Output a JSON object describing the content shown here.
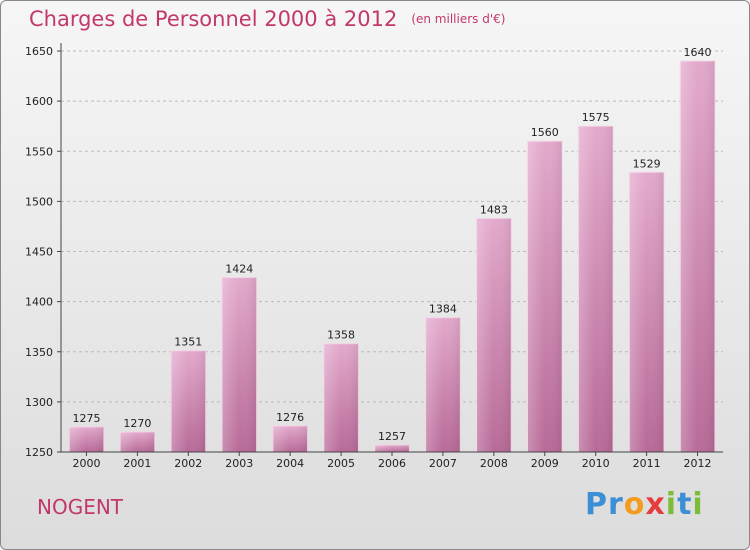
{
  "chart_data": {
    "type": "bar",
    "title": "Charges de Personnel 2000 à 2012",
    "subtitle": "(en milliers d'€)",
    "categories": [
      "2000",
      "2001",
      "2002",
      "2003",
      "2004",
      "2005",
      "2006",
      "2007",
      "2008",
      "2009",
      "2010",
      "2011",
      "2012"
    ],
    "values": [
      1275,
      1270,
      1351,
      1424,
      1276,
      1358,
      1257,
      1384,
      1483,
      1560,
      1575,
      1529,
      1640
    ],
    "ylim": [
      1250,
      1650
    ],
    "yticks": [
      1250,
      1300,
      1350,
      1400,
      1450,
      1500,
      1550,
      1600,
      1650
    ],
    "grid": true,
    "bar_color": "#d98ab5"
  },
  "location": "NOGENT",
  "logo": {
    "text": "Proxiti",
    "letters": [
      "P",
      "r",
      "o",
      "x",
      "i",
      "t",
      "i"
    ],
    "colors": [
      "#3b8fd4",
      "#3b8fd4",
      "#f29b1d",
      "#e73c3c",
      "#7dbb3b",
      "#3b8fd4",
      "#7dbb3b"
    ]
  }
}
